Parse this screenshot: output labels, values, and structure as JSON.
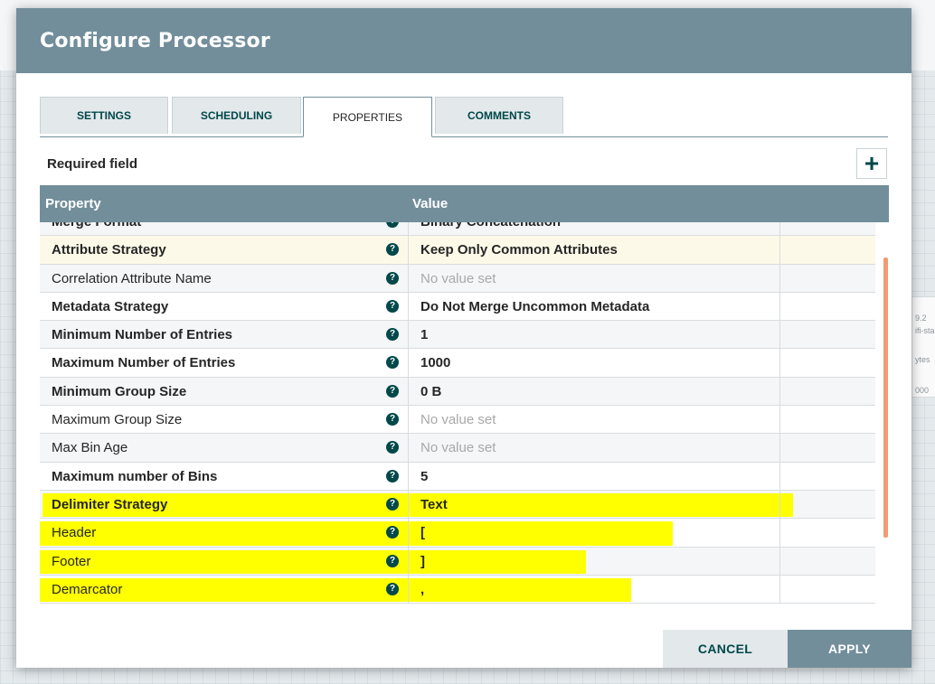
{
  "dialog": {
    "title": "Configure Processor",
    "tabs": [
      {
        "label": "SETTINGS",
        "active": false
      },
      {
        "label": "SCHEDULING",
        "active": false
      },
      {
        "label": "PROPERTIES",
        "active": true
      },
      {
        "label": "COMMENTS",
        "active": false
      }
    ],
    "required_label": "Required field",
    "add_label": "+",
    "columns": {
      "property": "Property",
      "value": "Value"
    },
    "rows": [
      {
        "name": "Merge Format",
        "value": "Binary Concatenation",
        "required": true,
        "unset": false
      },
      {
        "name": "Attribute Strategy",
        "value": "Keep Only Common Attributes",
        "required": true,
        "unset": false
      },
      {
        "name": "Correlation Attribute Name",
        "value": "No value set",
        "required": false,
        "unset": true
      },
      {
        "name": "Metadata Strategy",
        "value": "Do Not Merge Uncommon Metadata",
        "required": true,
        "unset": false
      },
      {
        "name": "Minimum Number of Entries",
        "value": "1",
        "required": true,
        "unset": false
      },
      {
        "name": "Maximum Number of Entries",
        "value": "1000",
        "required": true,
        "unset": false
      },
      {
        "name": "Minimum Group Size",
        "value": "0 B",
        "required": true,
        "unset": false
      },
      {
        "name": "Maximum Group Size",
        "value": "No value set",
        "required": false,
        "unset": true
      },
      {
        "name": "Max Bin Age",
        "value": "No value set",
        "required": false,
        "unset": true
      },
      {
        "name": "Maximum number of Bins",
        "value": "5",
        "required": true,
        "unset": false
      },
      {
        "name": "Delimiter Strategy",
        "value": "Text",
        "required": true,
        "unset": false
      },
      {
        "name": "Header",
        "value": "[",
        "required": false,
        "unset": false
      },
      {
        "name": "Footer",
        "value": "]",
        "required": false,
        "unset": false
      },
      {
        "name": "Demarcator",
        "value": ",",
        "required": false,
        "unset": false
      }
    ],
    "help_glyph": "?",
    "buttons": {
      "cancel": "CANCEL",
      "apply": "APPLY"
    }
  },
  "background": {
    "card_lines": [
      "9.2",
      "ifi-star",
      "ytes",
      "000"
    ]
  },
  "colors": {
    "header": "#728e9b",
    "accent": "#004849",
    "highlight": "#ffff00",
    "scrollbar": "#f19a73"
  }
}
